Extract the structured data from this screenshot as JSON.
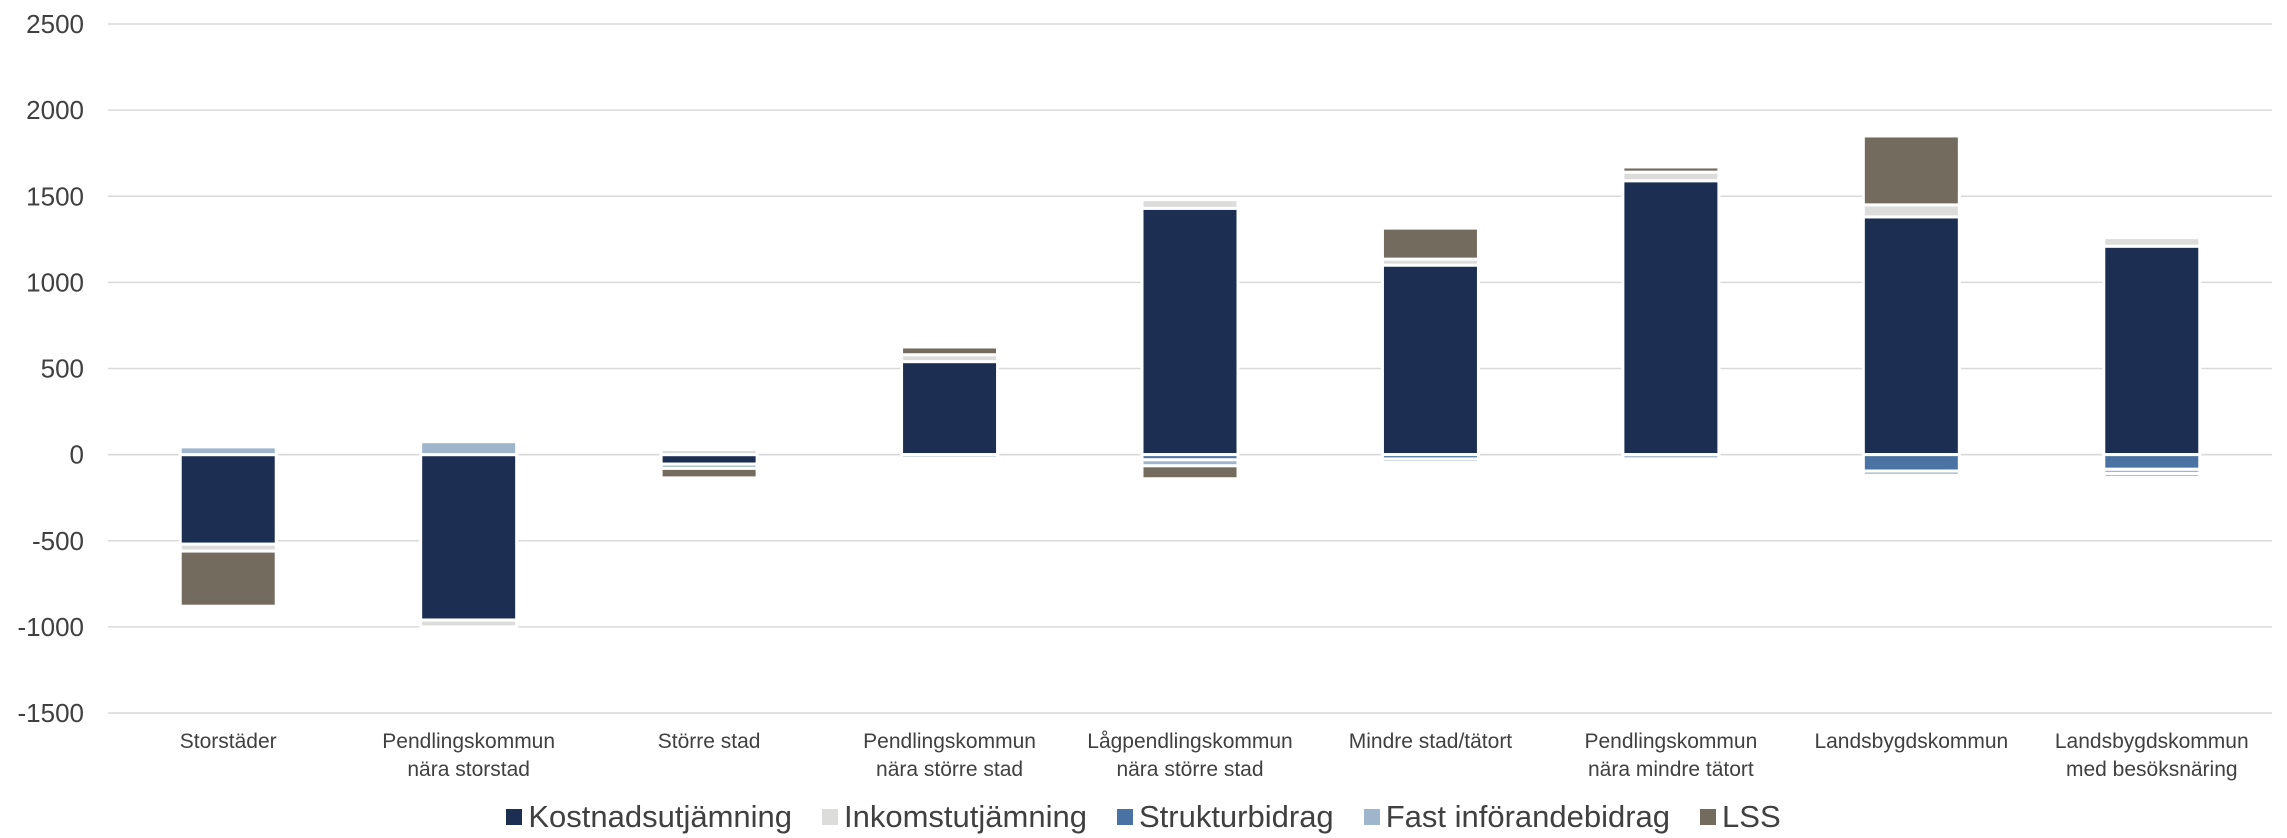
{
  "chart_data": {
    "type": "bar",
    "stacked": true,
    "title": "",
    "xlabel": "",
    "ylabel": "",
    "ylim": [
      -1500,
      2500
    ],
    "yticks": [
      2500,
      2000,
      1500,
      1000,
      500,
      0,
      -500,
      -1000,
      -1500
    ],
    "grid": true,
    "legend_position": "bottom",
    "categories": [
      [
        "Storstäder"
      ],
      [
        "Pendlingskommun",
        "nära storstad"
      ],
      [
        "Större stad"
      ],
      [
        "Pendlingskommun",
        "nära större stad"
      ],
      [
        "Lågpendlingskommun",
        "nära större stad"
      ],
      [
        "Mindre stad/tätort"
      ],
      [
        "Pendlingskommun",
        "nära mindre tätort"
      ],
      [
        "Landsbygdskommun"
      ],
      [
        "Landsbygdskommun",
        "med besöksnäring"
      ]
    ],
    "series": [
      {
        "name": "Kostnadsutjämning",
        "color": "#1c2f52",
        "values": [
          -520,
          -960,
          -55,
          540,
          1430,
          1100,
          1590,
          1380,
          1210
        ]
      },
      {
        "name": "Inkomstutjämning",
        "color": "#dcdcdb",
        "values": [
          -40,
          -40,
          30,
          40,
          50,
          35,
          50,
          70,
          50
        ]
      },
      {
        "name": "Strukturbidrag",
        "color": "#4a72a2",
        "values": [
          0,
          0,
          0,
          0,
          -30,
          -25,
          0,
          -95,
          -85
        ]
      },
      {
        "name": "Fast införandebidrag",
        "color": "#9eb5cc",
        "values": [
          45,
          75,
          -25,
          -20,
          -35,
          -20,
          -25,
          -25,
          -25
        ]
      },
      {
        "name": "LSS",
        "color": "#726b5e",
        "values": [
          -320,
          0,
          -55,
          45,
          -75,
          180,
          30,
          400,
          -20
        ]
      }
    ]
  }
}
